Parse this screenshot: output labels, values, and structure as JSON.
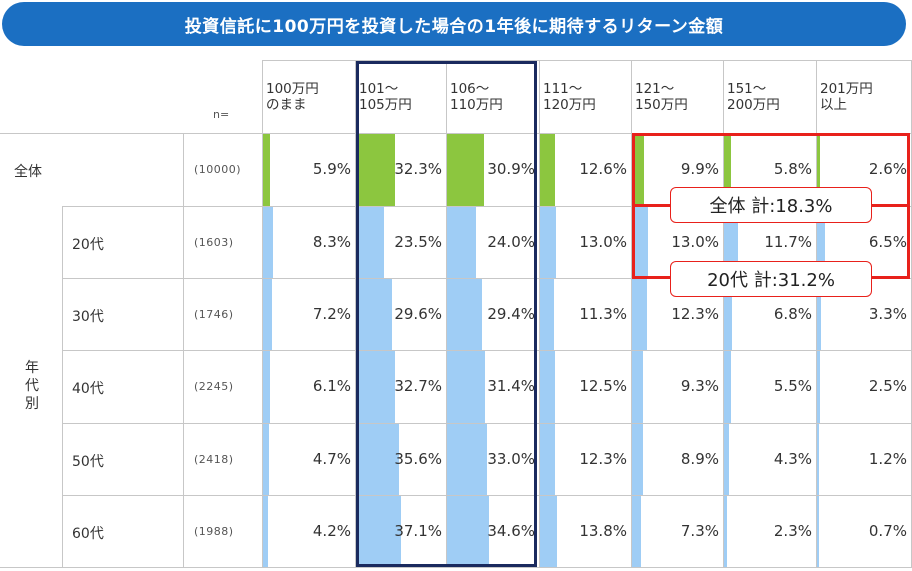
{
  "title": "投資信託に100万円を投資した場合の1年後に期待するリターン金額",
  "chart_data": {
    "type": "table",
    "columns": [
      "100万円\nのまま",
      "101～\n105万円",
      "106～\n110万円",
      "111～\n120万円",
      "121～\n150万円",
      "151～\n200万円",
      "201万円\n以上"
    ],
    "n_label": "n=",
    "group_label": "年代別",
    "rows": [
      {
        "label": "全体",
        "n": "(10000)",
        "values": [
          5.9,
          32.3,
          30.9,
          12.6,
          9.9,
          5.8,
          2.6
        ],
        "display": [
          "5.9%",
          "32.3%",
          "30.9%",
          "12.6%",
          "9.9%",
          "5.8%",
          "2.6%"
        ]
      },
      {
        "label": "20代",
        "n": "(1603)",
        "values": [
          8.3,
          23.5,
          24.0,
          13.0,
          13.0,
          11.7,
          6.5
        ],
        "display": [
          "8.3%",
          "23.5%",
          "24.0%",
          "13.0%",
          "13.0%",
          "11.7%",
          "6.5%"
        ]
      },
      {
        "label": "30代",
        "n": "(1746)",
        "values": [
          7.2,
          29.6,
          29.4,
          11.3,
          12.3,
          6.8,
          3.3
        ],
        "display": [
          "7.2%",
          "29.6%",
          "29.4%",
          "11.3%",
          "12.3%",
          "6.8%",
          "3.3%"
        ]
      },
      {
        "label": "40代",
        "n": "(2245)",
        "values": [
          6.1,
          32.7,
          31.4,
          12.5,
          9.3,
          5.5,
          2.5
        ],
        "display": [
          "6.1%",
          "32.7%",
          "31.4%",
          "12.5%",
          "9.3%",
          "5.5%",
          "2.5%"
        ]
      },
      {
        "label": "50代",
        "n": "(2418)",
        "values": [
          4.7,
          35.6,
          33.0,
          12.3,
          8.9,
          4.3,
          1.2
        ],
        "display": [
          "4.7%",
          "35.6%",
          "33.0%",
          "12.3%",
          "8.9%",
          "4.3%",
          "1.2%"
        ]
      },
      {
        "label": "60代",
        "n": "(1988)",
        "values": [
          4.2,
          37.1,
          34.6,
          13.8,
          7.3,
          2.3,
          0.7
        ],
        "display": [
          "4.2%",
          "37.1%",
          "34.6%",
          "13.8%",
          "7.3%",
          "2.3%",
          "0.7%"
        ]
      }
    ],
    "callouts": [
      "全体 計:18.3%",
      "20代 計:31.2%"
    ],
    "colors": {
      "total_bar": "#8cc63f",
      "age_bar": "#9fcdf5",
      "title_bg": "#1b6fc2",
      "highlight_blue": "#1a2a5e",
      "highlight_red": "#e8211b"
    }
  }
}
